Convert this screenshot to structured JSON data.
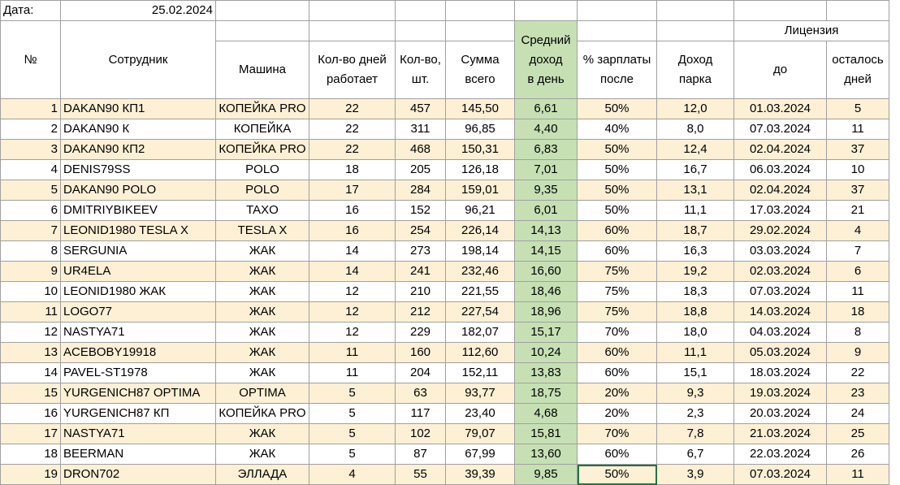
{
  "meta": {
    "date_label": "Дата:",
    "date_value": "25.02.2024"
  },
  "headers": {
    "no": "№",
    "employee": "Сотрудник",
    "car": "Машина",
    "days": [
      "Кол-во дней",
      "работает"
    ],
    "count": [
      "Кол-во,",
      "шт."
    ],
    "sum": [
      "Сумма",
      "всего"
    ],
    "avg": [
      "Средний",
      "доход",
      "в день"
    ],
    "pct": [
      "% зарплаты",
      "после"
    ],
    "park": [
      "Доход",
      "парка"
    ],
    "license": "Лицензия",
    "until": "до",
    "left": [
      "осталось",
      "дней"
    ]
  },
  "rows": [
    {
      "n": "1",
      "emp": "DAKAN90 КП1",
      "car": "КОПЕЙКА PRO",
      "days": "22",
      "cnt": "457",
      "sum": "145,50",
      "avg": "6,61",
      "pct": "50%",
      "park": "12,0",
      "until": "01.03.2024",
      "left": "5"
    },
    {
      "n": "2",
      "emp": "DAKAN90 К",
      "car": "КОПЕЙКА",
      "days": "22",
      "cnt": "311",
      "sum": "96,85",
      "avg": "4,40",
      "pct": "40%",
      "park": "8,0",
      "until": "07.03.2024",
      "left": "11"
    },
    {
      "n": "3",
      "emp": "DAKAN90 КП2",
      "car": "КОПЕЙКА PRO",
      "days": "22",
      "cnt": "468",
      "sum": "150,31",
      "avg": "6,83",
      "pct": "50%",
      "park": "12,4",
      "until": "02.04.2024",
      "left": "37"
    },
    {
      "n": "4",
      "emp": "DENIS79SS",
      "car": "POLO",
      "days": "18",
      "cnt": "205",
      "sum": "126,18",
      "avg": "7,01",
      "pct": "50%",
      "park": "16,7",
      "until": "06.03.2024",
      "left": "10"
    },
    {
      "n": "5",
      "emp": "DAKAN90 POLO",
      "car": "POLO",
      "days": "17",
      "cnt": "284",
      "sum": "159,01",
      "avg": "9,35",
      "pct": "50%",
      "park": "13,1",
      "until": "02.04.2024",
      "left": "37"
    },
    {
      "n": "6",
      "emp": "DMITRIYBIKEEV",
      "car": "TAXO",
      "days": "16",
      "cnt": "152",
      "sum": "96,21",
      "avg": "6,01",
      "pct": "50%",
      "park": "11,1",
      "until": "17.03.2024",
      "left": "21"
    },
    {
      "n": "7",
      "emp": "LEONID1980 TESLA X",
      "car": "TESLA X",
      "days": "16",
      "cnt": "254",
      "sum": "226,14",
      "avg": "14,13",
      "pct": "60%",
      "park": "18,7",
      "until": "29.02.2024",
      "left": "4"
    },
    {
      "n": "8",
      "emp": "SERGUNIA",
      "car": "ЖАК",
      "days": "14",
      "cnt": "273",
      "sum": "198,14",
      "avg": "14,15",
      "pct": "60%",
      "park": "16,3",
      "until": "03.03.2024",
      "left": "7"
    },
    {
      "n": "9",
      "emp": "UR4ELA",
      "car": "ЖАК",
      "days": "14",
      "cnt": "241",
      "sum": "232,46",
      "avg": "16,60",
      "pct": "75%",
      "park": "19,2",
      "until": "02.03.2024",
      "left": "6"
    },
    {
      "n": "10",
      "emp": "LEONID1980 ЖАК",
      "car": "ЖАК",
      "days": "12",
      "cnt": "210",
      "sum": "221,55",
      "avg": "18,46",
      "pct": "75%",
      "park": "18,3",
      "until": "07.03.2024",
      "left": "11"
    },
    {
      "n": "11",
      "emp": "LOGO77",
      "car": "ЖАК",
      "days": "12",
      "cnt": "212",
      "sum": "227,54",
      "avg": "18,96",
      "pct": "75%",
      "park": "18,8",
      "until": "14.03.2024",
      "left": "18"
    },
    {
      "n": "12",
      "emp": "NASTYA71",
      "car": "ЖАК",
      "days": "12",
      "cnt": "229",
      "sum": "182,07",
      "avg": "15,17",
      "pct": "70%",
      "park": "18,0",
      "until": "04.03.2024",
      "left": "8"
    },
    {
      "n": "13",
      "emp": "ACEBOBY19918",
      "car": "ЖАК",
      "days": "11",
      "cnt": "160",
      "sum": "112,60",
      "avg": "10,24",
      "pct": "60%",
      "park": "11,1",
      "until": "05.03.2024",
      "left": "9"
    },
    {
      "n": "14",
      "emp": "PAVEL-ST1978",
      "car": "ЖАК",
      "days": "11",
      "cnt": "204",
      "sum": "152,11",
      "avg": "13,83",
      "pct": "60%",
      "park": "15,1",
      "until": "18.03.2024",
      "left": "22"
    },
    {
      "n": "15",
      "emp": "YURGENICH87 OPTIMA",
      "car": "OPTIMA",
      "days": "5",
      "cnt": "63",
      "sum": "93,77",
      "avg": "18,75",
      "pct": "20%",
      "park": "9,3",
      "until": "19.03.2024",
      "left": "23"
    },
    {
      "n": "16",
      "emp": "YURGENICH87 КП",
      "car": "КОПЕЙКА PRO",
      "days": "5",
      "cnt": "117",
      "sum": "23,40",
      "avg": "4,68",
      "pct": "20%",
      "park": "2,3",
      "until": "20.03.2024",
      "left": "24"
    },
    {
      "n": "17",
      "emp": "NASTYA71",
      "car": "ЖАК",
      "days": "5",
      "cnt": "102",
      "sum": "79,07",
      "avg": "15,81",
      "pct": "70%",
      "park": "7,8",
      "until": "21.03.2024",
      "left": "25"
    },
    {
      "n": "18",
      "emp": "BEERMAN",
      "car": "ЖАК",
      "days": "5",
      "cnt": "87",
      "sum": "67,99",
      "avg": "13,60",
      "pct": "60%",
      "park": "6,7",
      "until": "22.03.2024",
      "left": "26"
    },
    {
      "n": "19",
      "emp": "DRON702",
      "car": "ЭЛЛАДА",
      "days": "4",
      "cnt": "55",
      "sum": "39,39",
      "avg": "9,85",
      "pct": "50%",
      "park": "3,9",
      "until": "07.03.2024",
      "left": "11"
    }
  ],
  "colors": {
    "row_highlight": "#fdf0d5",
    "avg_column": "#c6e0b4",
    "grid": "#a0a0a0",
    "selection": "#217346"
  }
}
